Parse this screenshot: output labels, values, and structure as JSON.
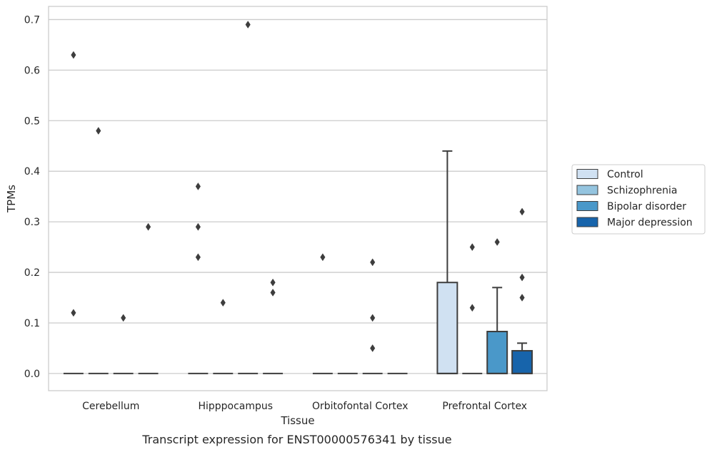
{
  "caption": "Transcript expression for ENST00000576341 by tissue",
  "chart_data": {
    "type": "box",
    "xlabel": "Tissue",
    "ylabel": "TPMs",
    "ylim": [
      -0.034,
      0.726
    ],
    "yticks": [
      "0.0",
      "0.1",
      "0.2",
      "0.3",
      "0.4",
      "0.5",
      "0.6",
      "0.7"
    ],
    "grid": "horizontal",
    "legend_position": "right",
    "categories": [
      "Cerebellum",
      "Hipppocampus",
      "Orbitofontal Cortex",
      "Prefrontal Cortex"
    ],
    "series": [
      {
        "name": "Control",
        "color": "#d0e1f2",
        "boxes": [
          {
            "q1": 0,
            "median": 0,
            "q3": 0,
            "whisker_low": 0,
            "whisker_high": 0,
            "outliers": [
              0.63,
              0.12
            ]
          },
          {
            "q1": 0,
            "median": 0,
            "q3": 0,
            "whisker_low": 0,
            "whisker_high": 0,
            "outliers": [
              0.37,
              0.29,
              0.23
            ]
          },
          {
            "q1": 0,
            "median": 0,
            "q3": 0,
            "whisker_low": 0,
            "whisker_high": 0,
            "outliers": [
              0.23
            ]
          },
          {
            "q1": 0,
            "median": 0,
            "q3": 0.18,
            "whisker_low": 0,
            "whisker_high": 0.44,
            "outliers": []
          }
        ]
      },
      {
        "name": "Schizophrenia",
        "color": "#94c4df",
        "boxes": [
          {
            "q1": 0,
            "median": 0,
            "q3": 0,
            "whisker_low": 0,
            "whisker_high": 0,
            "outliers": [
              0.48
            ]
          },
          {
            "q1": 0,
            "median": 0,
            "q3": 0,
            "whisker_low": 0,
            "whisker_high": 0,
            "outliers": [
              0.14
            ]
          },
          {
            "q1": 0,
            "median": 0,
            "q3": 0,
            "whisker_low": 0,
            "whisker_high": 0,
            "outliers": []
          },
          {
            "q1": 0,
            "median": 0,
            "q3": 0,
            "whisker_low": 0,
            "whisker_high": 0,
            "outliers": [
              0.25,
              0.13
            ]
          }
        ]
      },
      {
        "name": "Bipolar disorder",
        "color": "#4a98c9",
        "boxes": [
          {
            "q1": 0,
            "median": 0,
            "q3": 0,
            "whisker_low": 0,
            "whisker_high": 0,
            "outliers": [
              0.11
            ]
          },
          {
            "q1": 0,
            "median": 0,
            "q3": 0,
            "whisker_low": 0,
            "whisker_high": 0,
            "outliers": [
              0.69
            ]
          },
          {
            "q1": 0,
            "median": 0,
            "q3": 0,
            "whisker_low": 0,
            "whisker_high": 0,
            "outliers": [
              0.22,
              0.11,
              0.05
            ]
          },
          {
            "q1": 0,
            "median": 0,
            "q3": 0.083,
            "whisker_low": 0,
            "whisker_high": 0.17,
            "outliers": [
              0.26
            ]
          }
        ]
      },
      {
        "name": "Major depression",
        "color": "#1764ab",
        "boxes": [
          {
            "q1": 0,
            "median": 0,
            "q3": 0,
            "whisker_low": 0,
            "whisker_high": 0,
            "outliers": [
              0.29
            ]
          },
          {
            "q1": 0,
            "median": 0,
            "q3": 0,
            "whisker_low": 0,
            "whisker_high": 0,
            "outliers": [
              0.18,
              0.16
            ]
          },
          {
            "q1": 0,
            "median": 0,
            "q3": 0,
            "whisker_low": 0,
            "whisker_high": 0,
            "outliers": []
          },
          {
            "q1": 0,
            "median": 0,
            "q3": 0.045,
            "whisker_low": 0,
            "whisker_high": 0.06,
            "outliers": [
              0.32,
              0.19,
              0.15
            ]
          }
        ]
      }
    ]
  }
}
